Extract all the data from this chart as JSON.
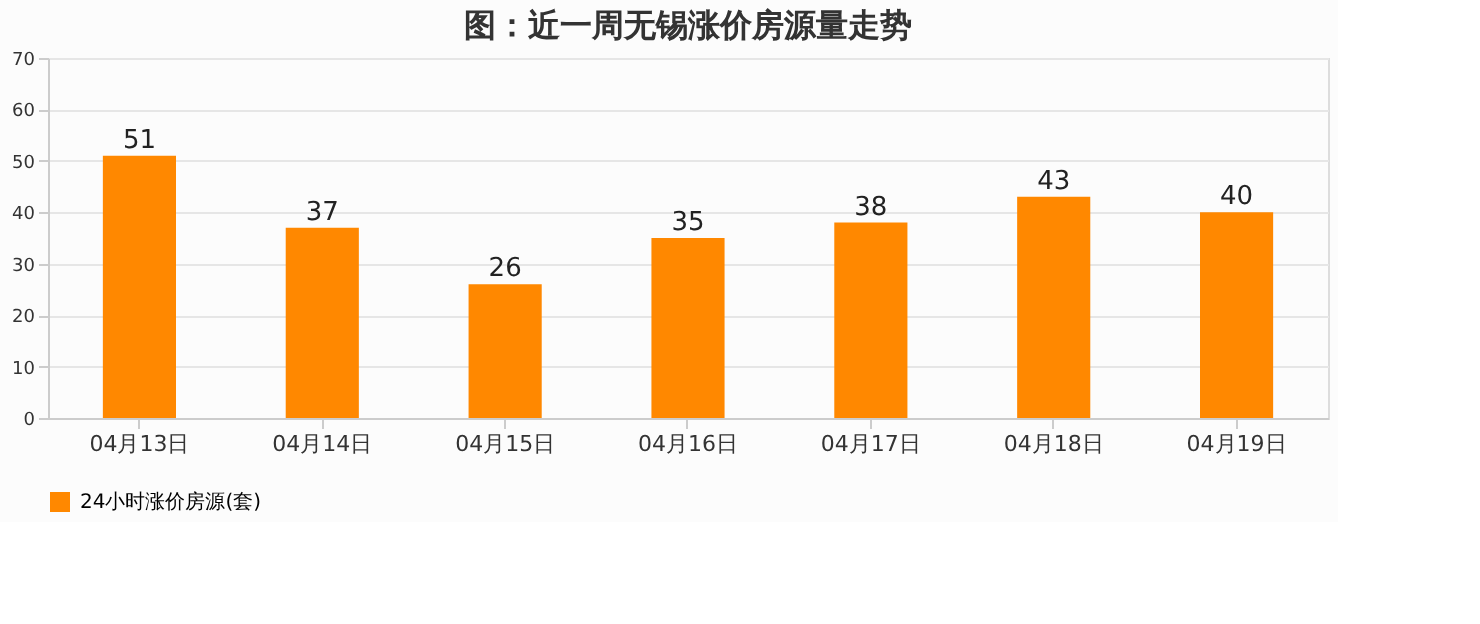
{
  "chart_data": {
    "type": "bar",
    "title": "图：近一周无锡涨价房源量走势",
    "categories": [
      "04月13日",
      "04月14日",
      "04月15日",
      "04月16日",
      "04月17日",
      "04月18日",
      "04月19日"
    ],
    "series": [
      {
        "name": "24小时涨价房源(套)",
        "color": "#ff8800",
        "values": [
          51,
          37,
          26,
          35,
          38,
          43,
          40
        ]
      }
    ],
    "ylim": [
      0,
      70
    ],
    "yticks": [
      0,
      10,
      20,
      30,
      40,
      50,
      60,
      70
    ],
    "grid": "y",
    "legend": "bottom",
    "data_labels": true
  }
}
